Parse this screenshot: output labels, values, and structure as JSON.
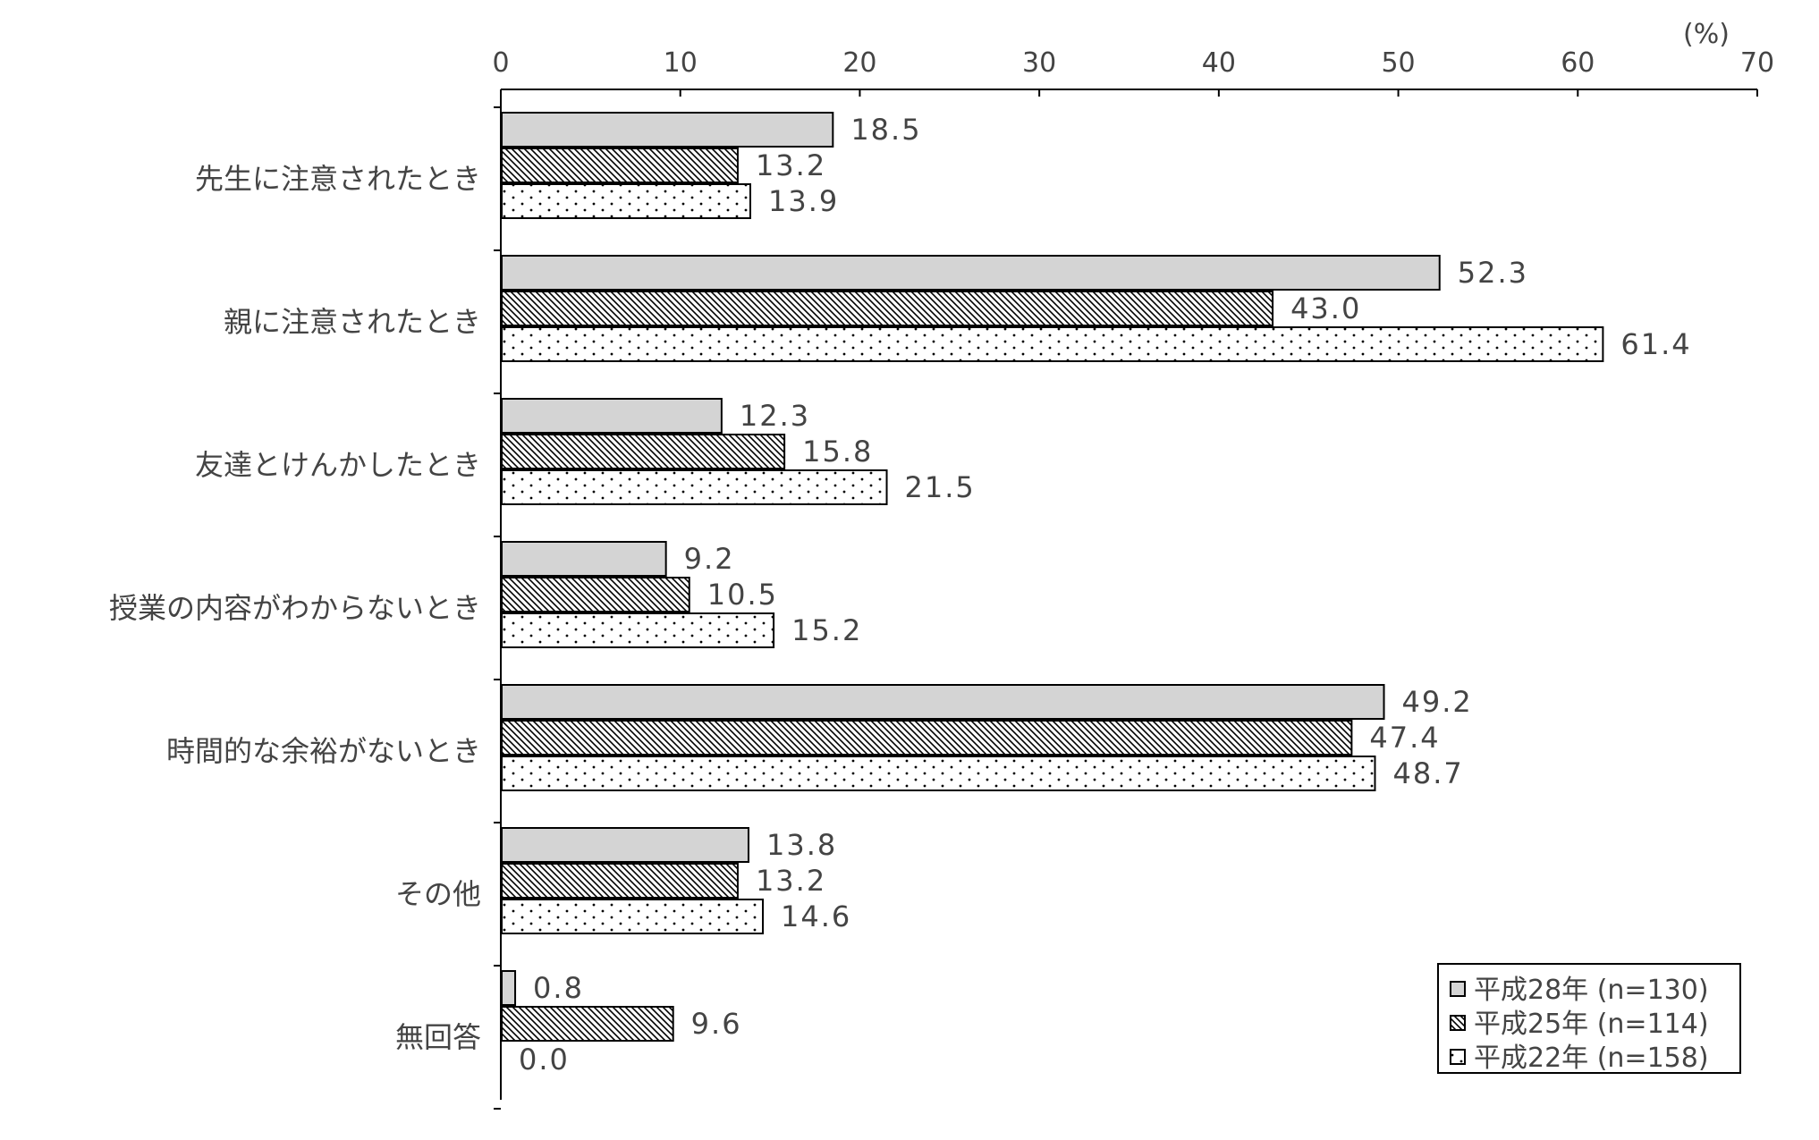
{
  "chart_data": {
    "type": "bar",
    "orientation": "horizontal",
    "unit_label": "(%)",
    "xlim": [
      0,
      70
    ],
    "xticks": [
      "0",
      "10",
      "20",
      "30",
      "40",
      "50",
      "60",
      "70"
    ],
    "grid": false,
    "legend_position": "bottom-right",
    "categories": [
      "先生に注意されたとき",
      "親に注意されたとき",
      "友達とけんかしたとき",
      "授業の内容がわからないとき",
      "時間的な余裕がないとき",
      "その他",
      "無回答"
    ],
    "series": [
      {
        "name": "平成28年 (n=130)",
        "pattern": "solid-gray",
        "values": [
          18.5,
          52.3,
          12.3,
          9.2,
          49.2,
          13.8,
          0.8
        ],
        "labels": [
          "18.5",
          "52.3",
          "12.3",
          "9.2",
          "49.2",
          "13.8",
          "0.8"
        ]
      },
      {
        "name": "平成25年 (n=114)",
        "pattern": "diagonal-hatch",
        "values": [
          13.2,
          43.0,
          15.8,
          10.5,
          47.4,
          13.2,
          9.6
        ],
        "labels": [
          "13.2",
          "43.0",
          "15.8",
          "10.5",
          "47.4",
          "13.2",
          "9.6"
        ]
      },
      {
        "name": "平成22年 (n=158)",
        "pattern": "dotted",
        "values": [
          13.9,
          61.4,
          21.5,
          15.2,
          48.7,
          14.6,
          0.0
        ],
        "labels": [
          "13.9",
          "61.4",
          "21.5",
          "15.2",
          "48.7",
          "14.6",
          "0.0"
        ]
      }
    ]
  },
  "colors": {
    "solid_fill": "#d4d4d4",
    "stroke": "#000000",
    "text": "#444444",
    "background": "#ffffff"
  }
}
